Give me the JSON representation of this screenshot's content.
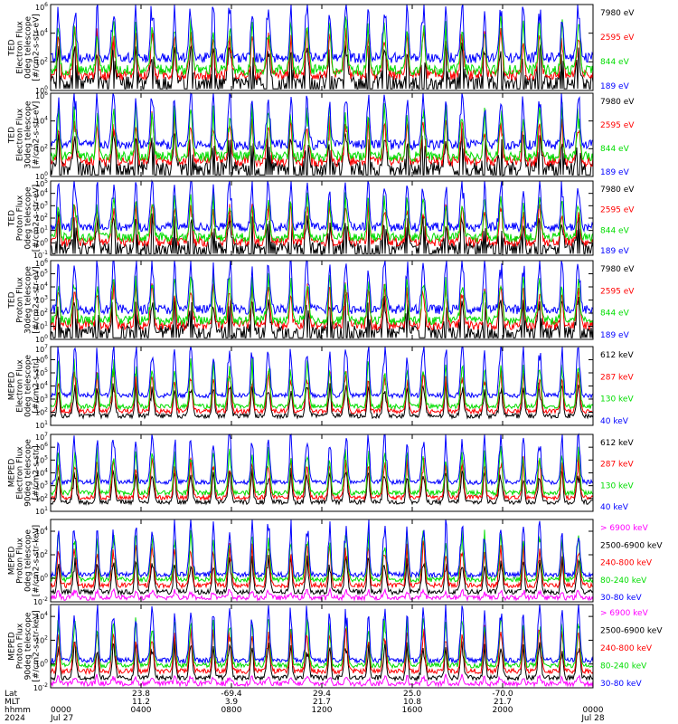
{
  "colors": {
    "blue": "#0000ff",
    "red": "#ff0000",
    "green": "#00dd00",
    "black": "#000000",
    "magenta": "#ff00ff"
  },
  "panels": [
    {
      "title": [
        "TED",
        "Electron Flux",
        "0deg telescope",
        "[#/cm2-s-str-eV]"
      ],
      "ylabels": [
        "10^0",
        "10^2",
        "10^4",
        "10^6"
      ],
      "ylim_exp": [
        0,
        6
      ],
      "legend": [
        {
          "label": "7980 eV",
          "color": "black"
        },
        {
          "label": "2595 eV",
          "color": "red"
        },
        {
          "label": "844 eV",
          "color": "green"
        },
        {
          "label": "189 eV",
          "color": "blue"
        }
      ]
    },
    {
      "title": [
        "TED",
        "Electron Flux",
        "30deg telescope",
        "[#/cm2-s-str-eV]"
      ],
      "ylabels": [
        "10^0",
        "10^2",
        "10^4",
        "10^6"
      ],
      "ylim_exp": [
        0,
        6
      ],
      "legend": [
        {
          "label": "7980 eV",
          "color": "black"
        },
        {
          "label": "2595 eV",
          "color": "red"
        },
        {
          "label": "844 eV",
          "color": "green"
        },
        {
          "label": "189 eV",
          "color": "blue"
        }
      ]
    },
    {
      "title": [
        "TED",
        "Proton Flux",
        "0deg telescope",
        "[#/cm2-s-str-eV]"
      ],
      "ylabels": [
        "10^-1",
        "10^0",
        "10^1",
        "10^2",
        "10^3",
        "10^4",
        "10^5"
      ],
      "ylim_exp": [
        -1,
        5
      ],
      "legend": [
        {
          "label": "7980 eV",
          "color": "black"
        },
        {
          "label": "2595 eV",
          "color": "red"
        },
        {
          "label": "844 eV",
          "color": "green"
        },
        {
          "label": "189 eV",
          "color": "blue"
        }
      ]
    },
    {
      "title": [
        "TED",
        "Proton Flux",
        "30deg telescope",
        "[#/cm2-s-str-eV]"
      ],
      "ylabels": [
        "10^0",
        "10^1",
        "10^2",
        "10^3",
        "10^4",
        "10^5",
        "10^6"
      ],
      "ylim_exp": [
        0,
        6
      ],
      "legend": [
        {
          "label": "7980 eV",
          "color": "black"
        },
        {
          "label": "2595 eV",
          "color": "red"
        },
        {
          "label": "844 eV",
          "color": "green"
        },
        {
          "label": "189 eV",
          "color": "blue"
        }
      ]
    },
    {
      "title": [
        "MEPED",
        "Electron Flux",
        "0deg telescope",
        "[#/cm2-s-str]"
      ],
      "ylabels": [
        "10^1",
        "10^2",
        "10^3",
        "10^4",
        "10^5",
        "10^6",
        "10^7"
      ],
      "ylim_exp": [
        1,
        7
      ],
      "legend": [
        {
          "label": "612 keV",
          "color": "black"
        },
        {
          "label": "287 keV",
          "color": "red"
        },
        {
          "label": "130 keV",
          "color": "green"
        },
        {
          "label": "40 keV",
          "color": "blue"
        }
      ]
    },
    {
      "title": [
        "MEPED",
        "Electron Flux",
        "90deg telescope",
        "[#/cm2-s-str]"
      ],
      "ylabels": [
        "10^1",
        "10^2",
        "10^3",
        "10^4",
        "10^5",
        "10^6",
        "10^7"
      ],
      "ylim_exp": [
        1,
        7
      ],
      "legend": [
        {
          "label": "612 keV",
          "color": "black"
        },
        {
          "label": "287 keV",
          "color": "red"
        },
        {
          "label": "130 keV",
          "color": "green"
        },
        {
          "label": "40 keV",
          "color": "blue"
        }
      ]
    },
    {
      "title": [
        "MEPED",
        "Proton Flux",
        "0deg telescope",
        "[#/cm2-s-str-keV]"
      ],
      "ylabels": [
        "10^-2",
        "10^0",
        "10^2",
        "10^4"
      ],
      "ylim_exp": [
        -2,
        5
      ],
      "legend": [
        {
          "label": "> 6900 keV",
          "color": "magenta"
        },
        {
          "label": "2500-6900 keV",
          "color": "black"
        },
        {
          "label": "240-800 keV",
          "color": "red"
        },
        {
          "label": "80-240 keV",
          "color": "green"
        },
        {
          "label": "30-80 keV",
          "color": "blue"
        }
      ]
    },
    {
      "title": [
        "MEPED",
        "Proton Flux",
        "90deg telescope",
        "[#/cm2-s-str-keV]"
      ],
      "ylabels": [
        "10^-2",
        "10^0",
        "10^2",
        "10^4"
      ],
      "ylim_exp": [
        -2,
        5
      ],
      "legend": [
        {
          "label": "> 6900 keV",
          "color": "magenta"
        },
        {
          "label": "2500-6900 keV",
          "color": "black"
        },
        {
          "label": "240-800 keV",
          "color": "red"
        },
        {
          "label": "80-240 keV",
          "color": "green"
        },
        {
          "label": "30-80 keV",
          "color": "blue"
        }
      ]
    }
  ],
  "xaxis": {
    "row_labels": [
      "Lat",
      "MLT",
      "hhmm",
      "2024"
    ],
    "columns": [
      {
        "lat": "",
        "mlt": "",
        "hhmm": "0000",
        "date": "Jul 27"
      },
      {
        "lat": "23.8",
        "mlt": "11.2",
        "hhmm": "0400",
        "date": ""
      },
      {
        "lat": "-69.4",
        "mlt": "3.9",
        "hhmm": "0800",
        "date": ""
      },
      {
        "lat": "29.4",
        "mlt": "21.7",
        "hhmm": "1200",
        "date": ""
      },
      {
        "lat": "25.0",
        "mlt": "10.8",
        "hhmm": "1600",
        "date": ""
      },
      {
        "lat": "-70.0",
        "mlt": "21.7",
        "hhmm": "2000",
        "date": ""
      },
      {
        "lat": "",
        "mlt": "",
        "hhmm": "0000",
        "date": "Jul 28"
      }
    ]
  },
  "chart_data": {
    "type": "line",
    "description_scale": "log",
    "x_range_hours": [
      0,
      24
    ],
    "x_ticks": [
      "0000",
      "0400",
      "0800",
      "1200",
      "1600",
      "2000",
      "0000"
    ],
    "orbit_count": 14,
    "panels": [
      {
        "name": "TED Electron Flux 0deg",
        "ylim": [
          1,
          1000000
        ],
        "series": [
          "7980 eV",
          "2595 eV",
          "844 eV",
          "189 eV"
        ]
      },
      {
        "name": "TED Electron Flux 30deg",
        "ylim": [
          1,
          1000000
        ],
        "series": [
          "7980 eV",
          "2595 eV",
          "844 eV",
          "189 eV"
        ]
      },
      {
        "name": "TED Proton Flux 0deg",
        "ylim": [
          0.1,
          100000
        ],
        "series": [
          "7980 eV",
          "2595 eV",
          "844 eV",
          "189 eV"
        ]
      },
      {
        "name": "TED Proton Flux 30deg",
        "ylim": [
          1,
          1000000
        ],
        "series": [
          "7980 eV",
          "2595 eV",
          "844 eV",
          "189 eV"
        ]
      },
      {
        "name": "MEPED Electron Flux 0deg",
        "ylim": [
          10,
          10000000
        ],
        "series": [
          "612 keV",
          "287 keV",
          "130 keV",
          "40 keV"
        ]
      },
      {
        "name": "MEPED Electron Flux 90deg",
        "ylim": [
          10,
          10000000
        ],
        "series": [
          "612 keV",
          "287 keV",
          "130 keV",
          "40 keV"
        ]
      },
      {
        "name": "MEPED Proton Flux 0deg",
        "ylim": [
          0.01,
          100000
        ],
        "series": [
          "> 6900 keV",
          "2500-6900 keV",
          "240-800 keV",
          "80-240 keV",
          "30-80 keV"
        ]
      },
      {
        "name": "MEPED Proton Flux 90deg",
        "ylim": [
          0.01,
          100000
        ],
        "series": [
          "> 6900 keV",
          "2500-6900 keV",
          "240-800 keV",
          "80-240 keV",
          "30-80 keV"
        ]
      }
    ]
  }
}
